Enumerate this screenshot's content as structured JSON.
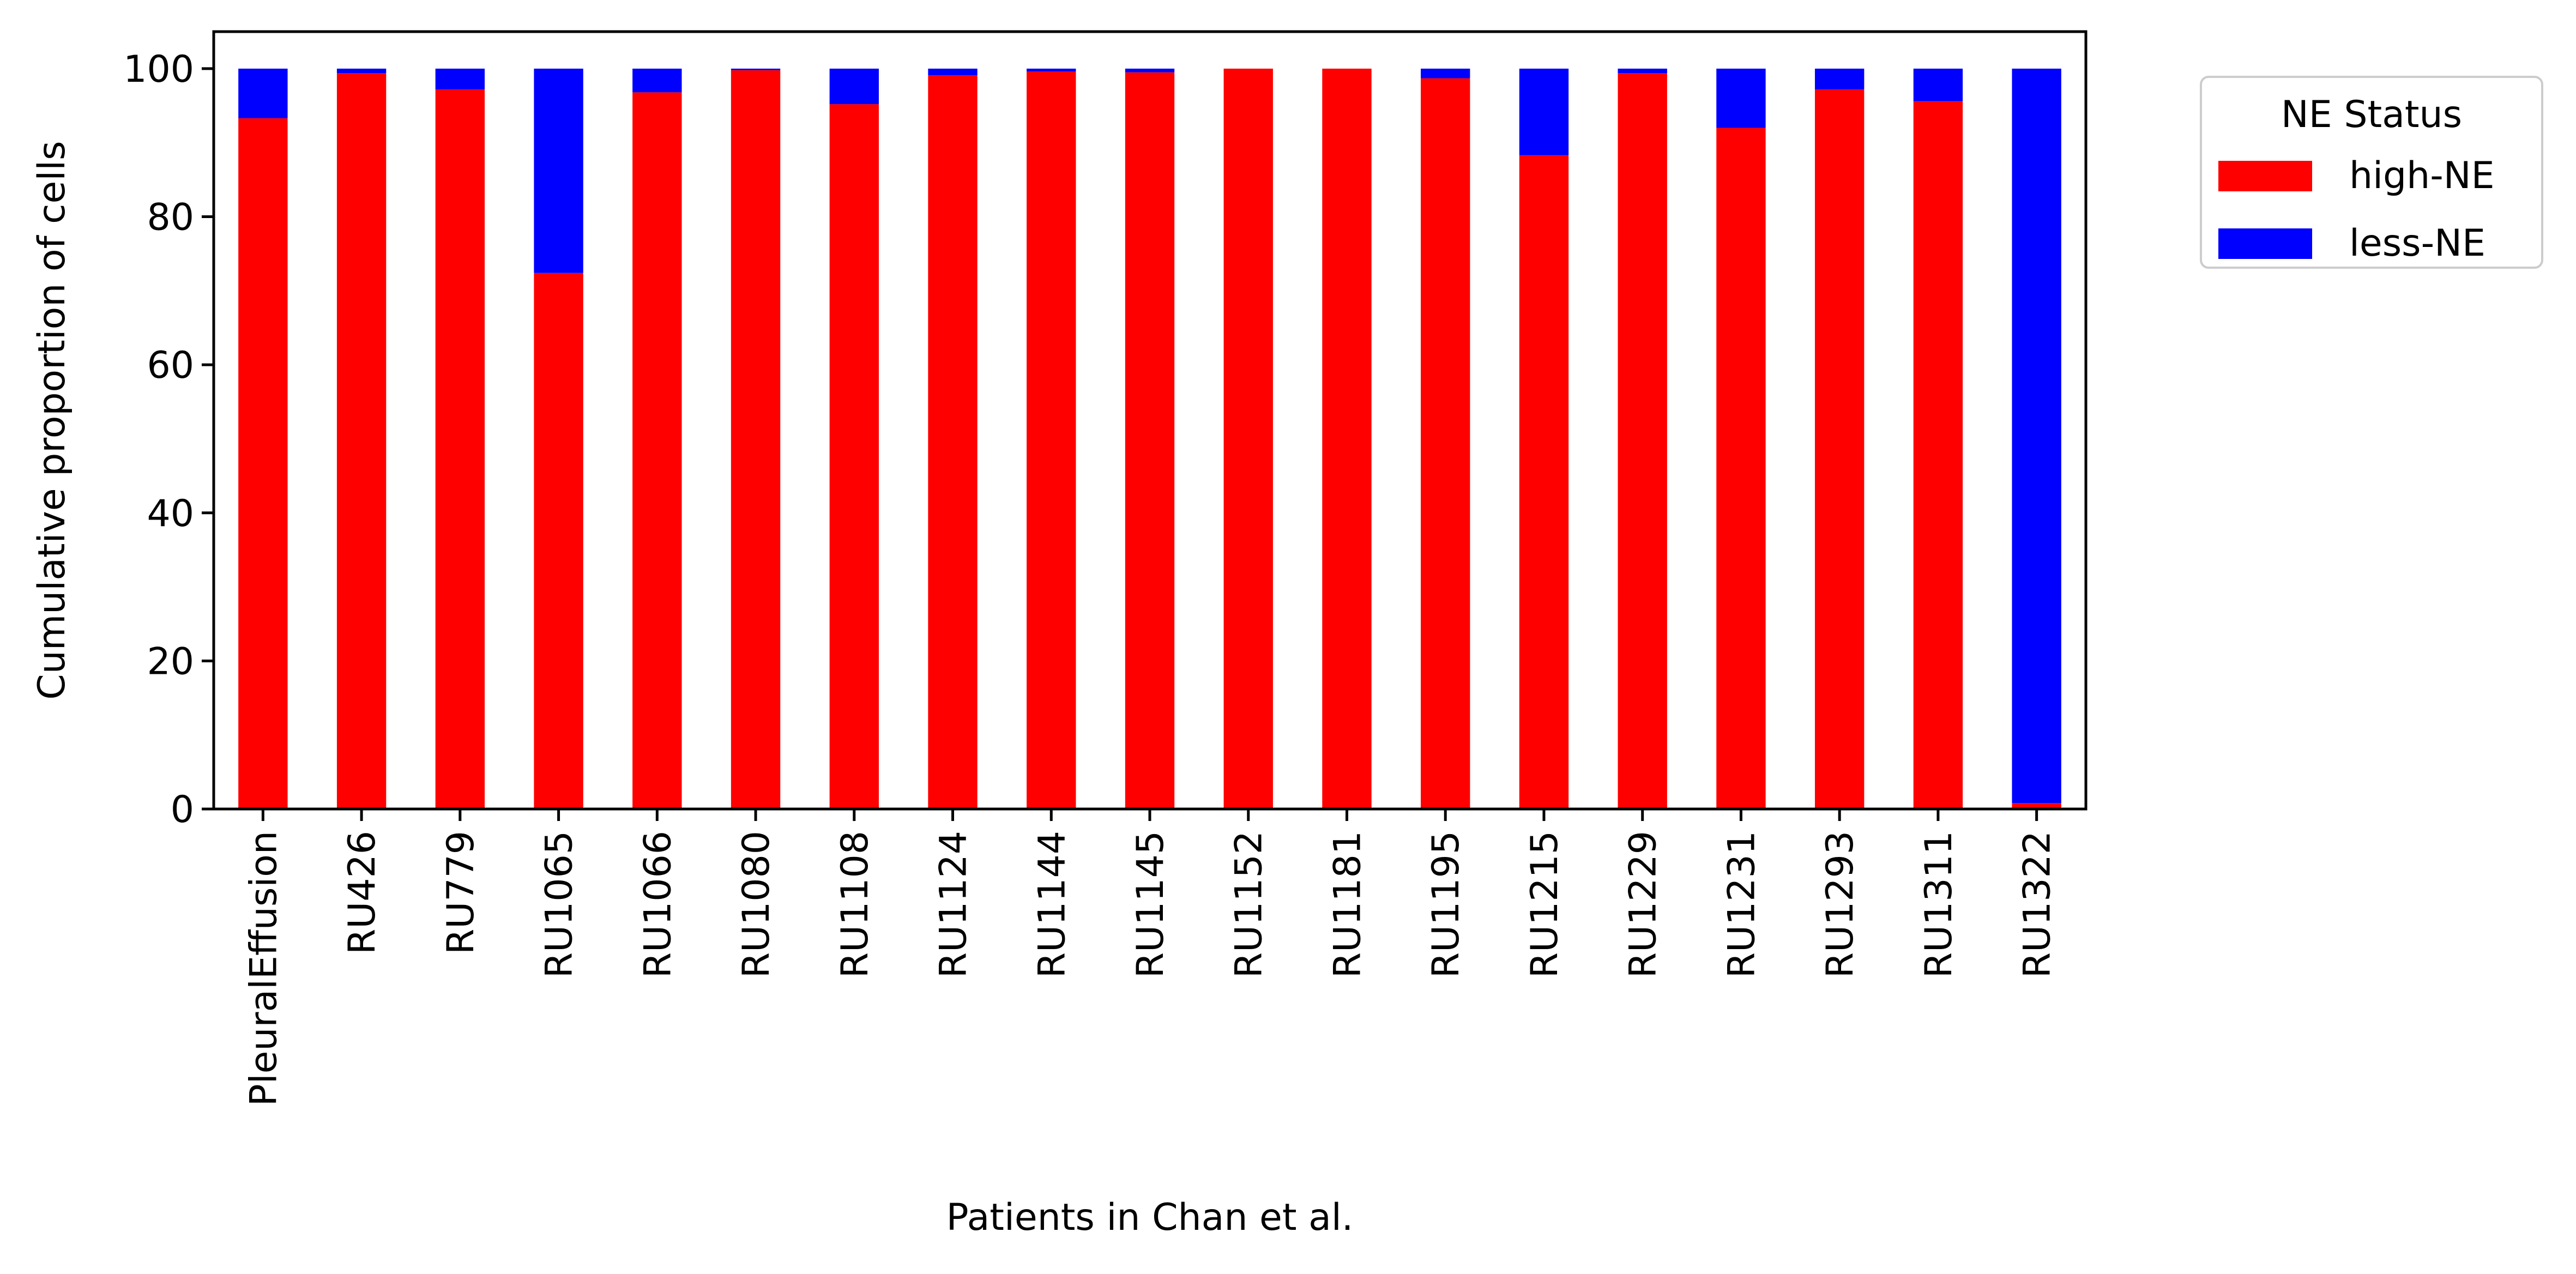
{
  "chart_data": {
    "type": "bar",
    "stacked": true,
    "title": "",
    "xlabel": "Patients in Chan et al.",
    "ylabel": "Cumulative proportion of cells",
    "ylim": [
      0,
      105
    ],
    "yticks": [
      0,
      20,
      40,
      60,
      80,
      100
    ],
    "grid": false,
    "categories": [
      "PleuralEffusion",
      "RU426",
      "RU779",
      "RU1065",
      "RU1066",
      "RU1080",
      "RU1108",
      "RU1124",
      "RU1144",
      "RU1145",
      "RU1152",
      "RU1181",
      "RU1195",
      "RU1215",
      "RU1229",
      "RU1231",
      "RU1293",
      "RU1311",
      "RU1322"
    ],
    "series": [
      {
        "name": "high-NE",
        "color": "#ff0000",
        "values": [
          93.3,
          99.4,
          97.2,
          72.4,
          96.8,
          99.8,
          95.2,
          99.1,
          99.6,
          99.5,
          100.0,
          100.0,
          98.7,
          88.3,
          99.4,
          92.0,
          97.2,
          95.6,
          0.8
        ]
      },
      {
        "name": "less-NE",
        "color": "#0000ff",
        "values": [
          6.7,
          0.6,
          2.8,
          27.6,
          3.2,
          0.2,
          4.8,
          0.9,
          0.4,
          0.5,
          0.0,
          0.0,
          1.3,
          11.7,
          0.6,
          8.0,
          2.8,
          4.4,
          99.2
        ]
      }
    ],
    "legend": {
      "title": "NE Status",
      "placement": "outside-top-right"
    }
  }
}
